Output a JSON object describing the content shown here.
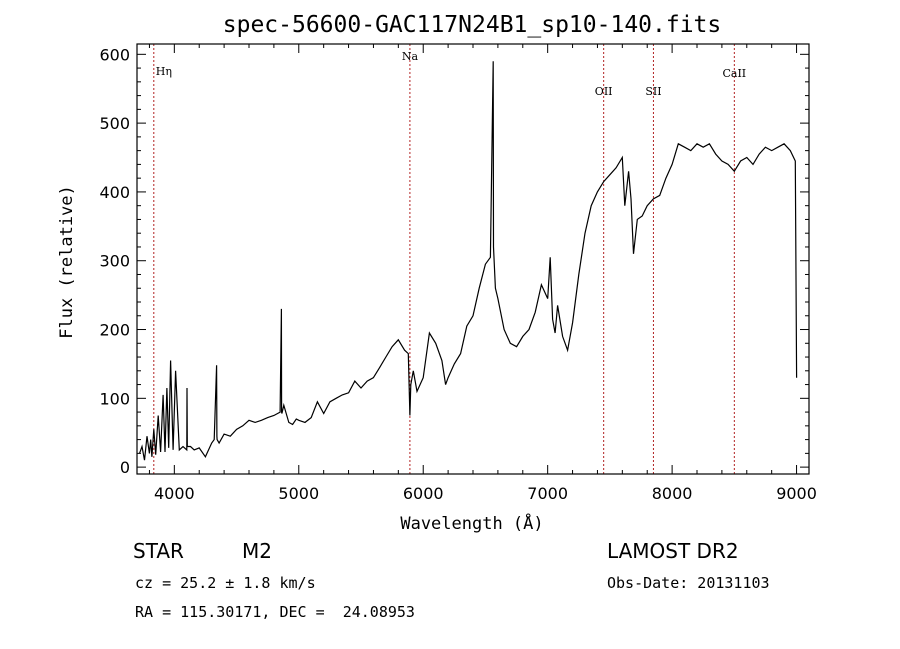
{
  "chart_data": {
    "type": "line",
    "title": "spec-56600-GAC117N24B1_sp10-140.fits",
    "xlabel": "Wavelength (Å)",
    "ylabel": "Flux (relative)",
    "xlim": [
      3700,
      9100
    ],
    "ylim": [
      -10,
      615
    ],
    "xticks": [
      4000,
      5000,
      6000,
      7000,
      8000,
      9000
    ],
    "yticks": [
      0,
      100,
      200,
      300,
      400,
      500,
      600
    ],
    "grid": false,
    "line_color": "#000000",
    "marker_color": "#b22222",
    "lines": [
      {
        "label": "Hη",
        "x": 3835
      },
      {
        "label": "Na",
        "x": 5893
      },
      {
        "label": "OII",
        "x": 7450
      },
      {
        "label": "SII",
        "x": 7850
      },
      {
        "label": "CaII",
        "x": 8500
      }
    ],
    "series": [
      {
        "x": [
          3720,
          3740,
          3760,
          3780,
          3800,
          3810,
          3820,
          3835,
          3850,
          3870,
          3890,
          3910,
          3925,
          3940,
          3955,
          3970,
          3990,
          4010,
          4040,
          4070,
          4100,
          4102,
          4104,
          4130,
          4160,
          4200,
          4250,
          4300,
          4320,
          4340,
          4342,
          4344,
          4360,
          4400,
          4450,
          4500,
          4550,
          4600,
          4650,
          4700,
          4750,
          4800,
          4850,
          4860,
          4862,
          4864,
          4880,
          4920,
          4950,
          4980,
          5000,
          5050,
          5100,
          5150,
          5200,
          5250,
          5300,
          5350,
          5400,
          5450,
          5500,
          5550,
          5600,
          5650,
          5700,
          5750,
          5800,
          5850,
          5880,
          5893,
          5900,
          5920,
          5950,
          6000,
          6050,
          6100,
          6150,
          6180,
          6200,
          6250,
          6300,
          6350,
          6400,
          6450,
          6500,
          6540,
          6562,
          6565,
          6580,
          6600,
          6650,
          6700,
          6750,
          6800,
          6850,
          6900,
          6950,
          7000,
          7020,
          7040,
          7060,
          7080,
          7120,
          7160,
          7200,
          7250,
          7300,
          7350,
          7400,
          7450,
          7500,
          7550,
          7600,
          7620,
          7650,
          7670,
          7690,
          7720,
          7760,
          7800,
          7850,
          7900,
          7950,
          8000,
          8050,
          8100,
          8150,
          8200,
          8250,
          8300,
          8350,
          8400,
          8450,
          8500,
          8550,
          8600,
          8650,
          8700,
          8750,
          8800,
          8850,
          8900,
          8950,
          8990,
          9000
        ],
        "values": [
          20,
          30,
          10,
          45,
          20,
          40,
          15,
          55,
          18,
          75,
          22,
          105,
          22,
          115,
          28,
          155,
          25,
          140,
          25,
          30,
          25,
          115,
          30,
          30,
          25,
          28,
          15,
          35,
          40,
          148,
          45,
          40,
          35,
          48,
          45,
          55,
          60,
          68,
          65,
          68,
          72,
          75,
          80,
          230,
          80,
          78,
          90,
          65,
          62,
          70,
          68,
          65,
          72,
          95,
          78,
          95,
          100,
          105,
          108,
          125,
          115,
          125,
          130,
          145,
          160,
          175,
          185,
          170,
          165,
          75,
          120,
          140,
          110,
          130,
          195,
          180,
          155,
          120,
          130,
          150,
          165,
          205,
          220,
          260,
          295,
          305,
          590,
          320,
          260,
          245,
          200,
          180,
          175,
          190,
          200,
          225,
          265,
          245,
          305,
          215,
          195,
          235,
          190,
          170,
          210,
          280,
          340,
          380,
          400,
          415,
          425,
          435,
          450,
          380,
          430,
          390,
          310,
          360,
          365,
          380,
          390,
          395,
          420,
          440,
          470,
          465,
          460,
          470,
          465,
          470,
          455,
          445,
          440,
          430,
          445,
          450,
          440,
          455,
          465,
          460,
          465,
          470,
          460,
          445,
          130
        ]
      }
    ]
  },
  "info": {
    "object_class": "STAR",
    "subclass": "M2",
    "survey": "LAMOST DR2",
    "redshift": "cz = 25.2 ± 1.8 km/s",
    "obs_date": "Obs-Date: 20131103",
    "coordinates": "RA = 115.30171, DEC =  24.08953"
  }
}
